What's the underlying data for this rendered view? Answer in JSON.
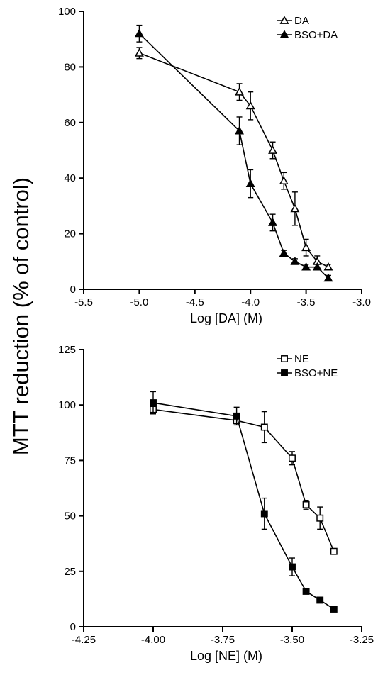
{
  "shared_ylabel": "MTT reduction (% of control)",
  "chart_data": [
    {
      "type": "line",
      "xlabel": "Log [DA] (M)",
      "xlim": [
        -5.5,
        -3.0
      ],
      "ylim": [
        0,
        100
      ],
      "xticks": [
        -5.5,
        -5.0,
        -4.5,
        -4.0,
        -3.5,
        -3.0
      ],
      "xtick_labels": [
        "-5.5",
        "-5.0",
        "-4.5",
        "-4.0",
        "-3.5",
        "-3.0"
      ],
      "yticks": [
        0,
        20,
        40,
        60,
        80,
        100
      ],
      "ytick_labels": [
        "0",
        "20",
        "40",
        "60",
        "80",
        "100"
      ],
      "legend_position": "top-right",
      "series": [
        {
          "name": "DA",
          "marker": "triangle-open",
          "x": [
            -5.0,
            -4.1,
            -4.0,
            -3.8,
            -3.7,
            -3.6,
            -3.5,
            -3.4,
            -3.3
          ],
          "y": [
            85,
            71,
            66,
            50,
            39,
            29,
            15,
            10,
            8
          ],
          "err": [
            2,
            3,
            5,
            3,
            3,
            6,
            3,
            2,
            1
          ]
        },
        {
          "name": "BSO+DA",
          "marker": "triangle-filled",
          "x": [
            -5.0,
            -4.1,
            -4.0,
            -3.8,
            -3.7,
            -3.6,
            -3.5,
            -3.4,
            -3.3
          ],
          "y": [
            92,
            57,
            38,
            24,
            13,
            10,
            8,
            8,
            4
          ],
          "err": [
            3,
            5,
            5,
            3,
            1,
            1,
            1,
            1,
            1
          ]
        }
      ]
    },
    {
      "type": "line",
      "xlabel": "Log [NE] (M)",
      "xlim": [
        -4.25,
        -3.25
      ],
      "ylim": [
        0,
        125
      ],
      "xticks": [
        -4.25,
        -4.0,
        -3.75,
        -3.5,
        -3.25
      ],
      "xtick_labels": [
        "-4.25",
        "-4.00",
        "-3.75",
        "-3.50",
        "-3.25"
      ],
      "yticks": [
        0,
        25,
        50,
        75,
        100,
        125
      ],
      "ytick_labels": [
        "0",
        "25",
        "50",
        "75",
        "100",
        "125"
      ],
      "legend_position": "top-right",
      "series": [
        {
          "name": "NE",
          "marker": "square-open",
          "x": [
            -4.0,
            -3.7,
            -3.6,
            -3.5,
            -3.45,
            -3.4,
            -3.35
          ],
          "y": [
            98,
            93,
            90,
            76,
            55,
            49,
            34
          ],
          "err": [
            2,
            2,
            7,
            3,
            2,
            5,
            1
          ]
        },
        {
          "name": "BSO+NE",
          "marker": "square-filled",
          "x": [
            -4.0,
            -3.7,
            -3.6,
            -3.5,
            -3.45,
            -3.4,
            -3.35
          ],
          "y": [
            101,
            95,
            51,
            27,
            16,
            12,
            8
          ],
          "err": [
            5,
            4,
            7,
            4,
            1,
            1,
            1
          ]
        }
      ]
    }
  ]
}
